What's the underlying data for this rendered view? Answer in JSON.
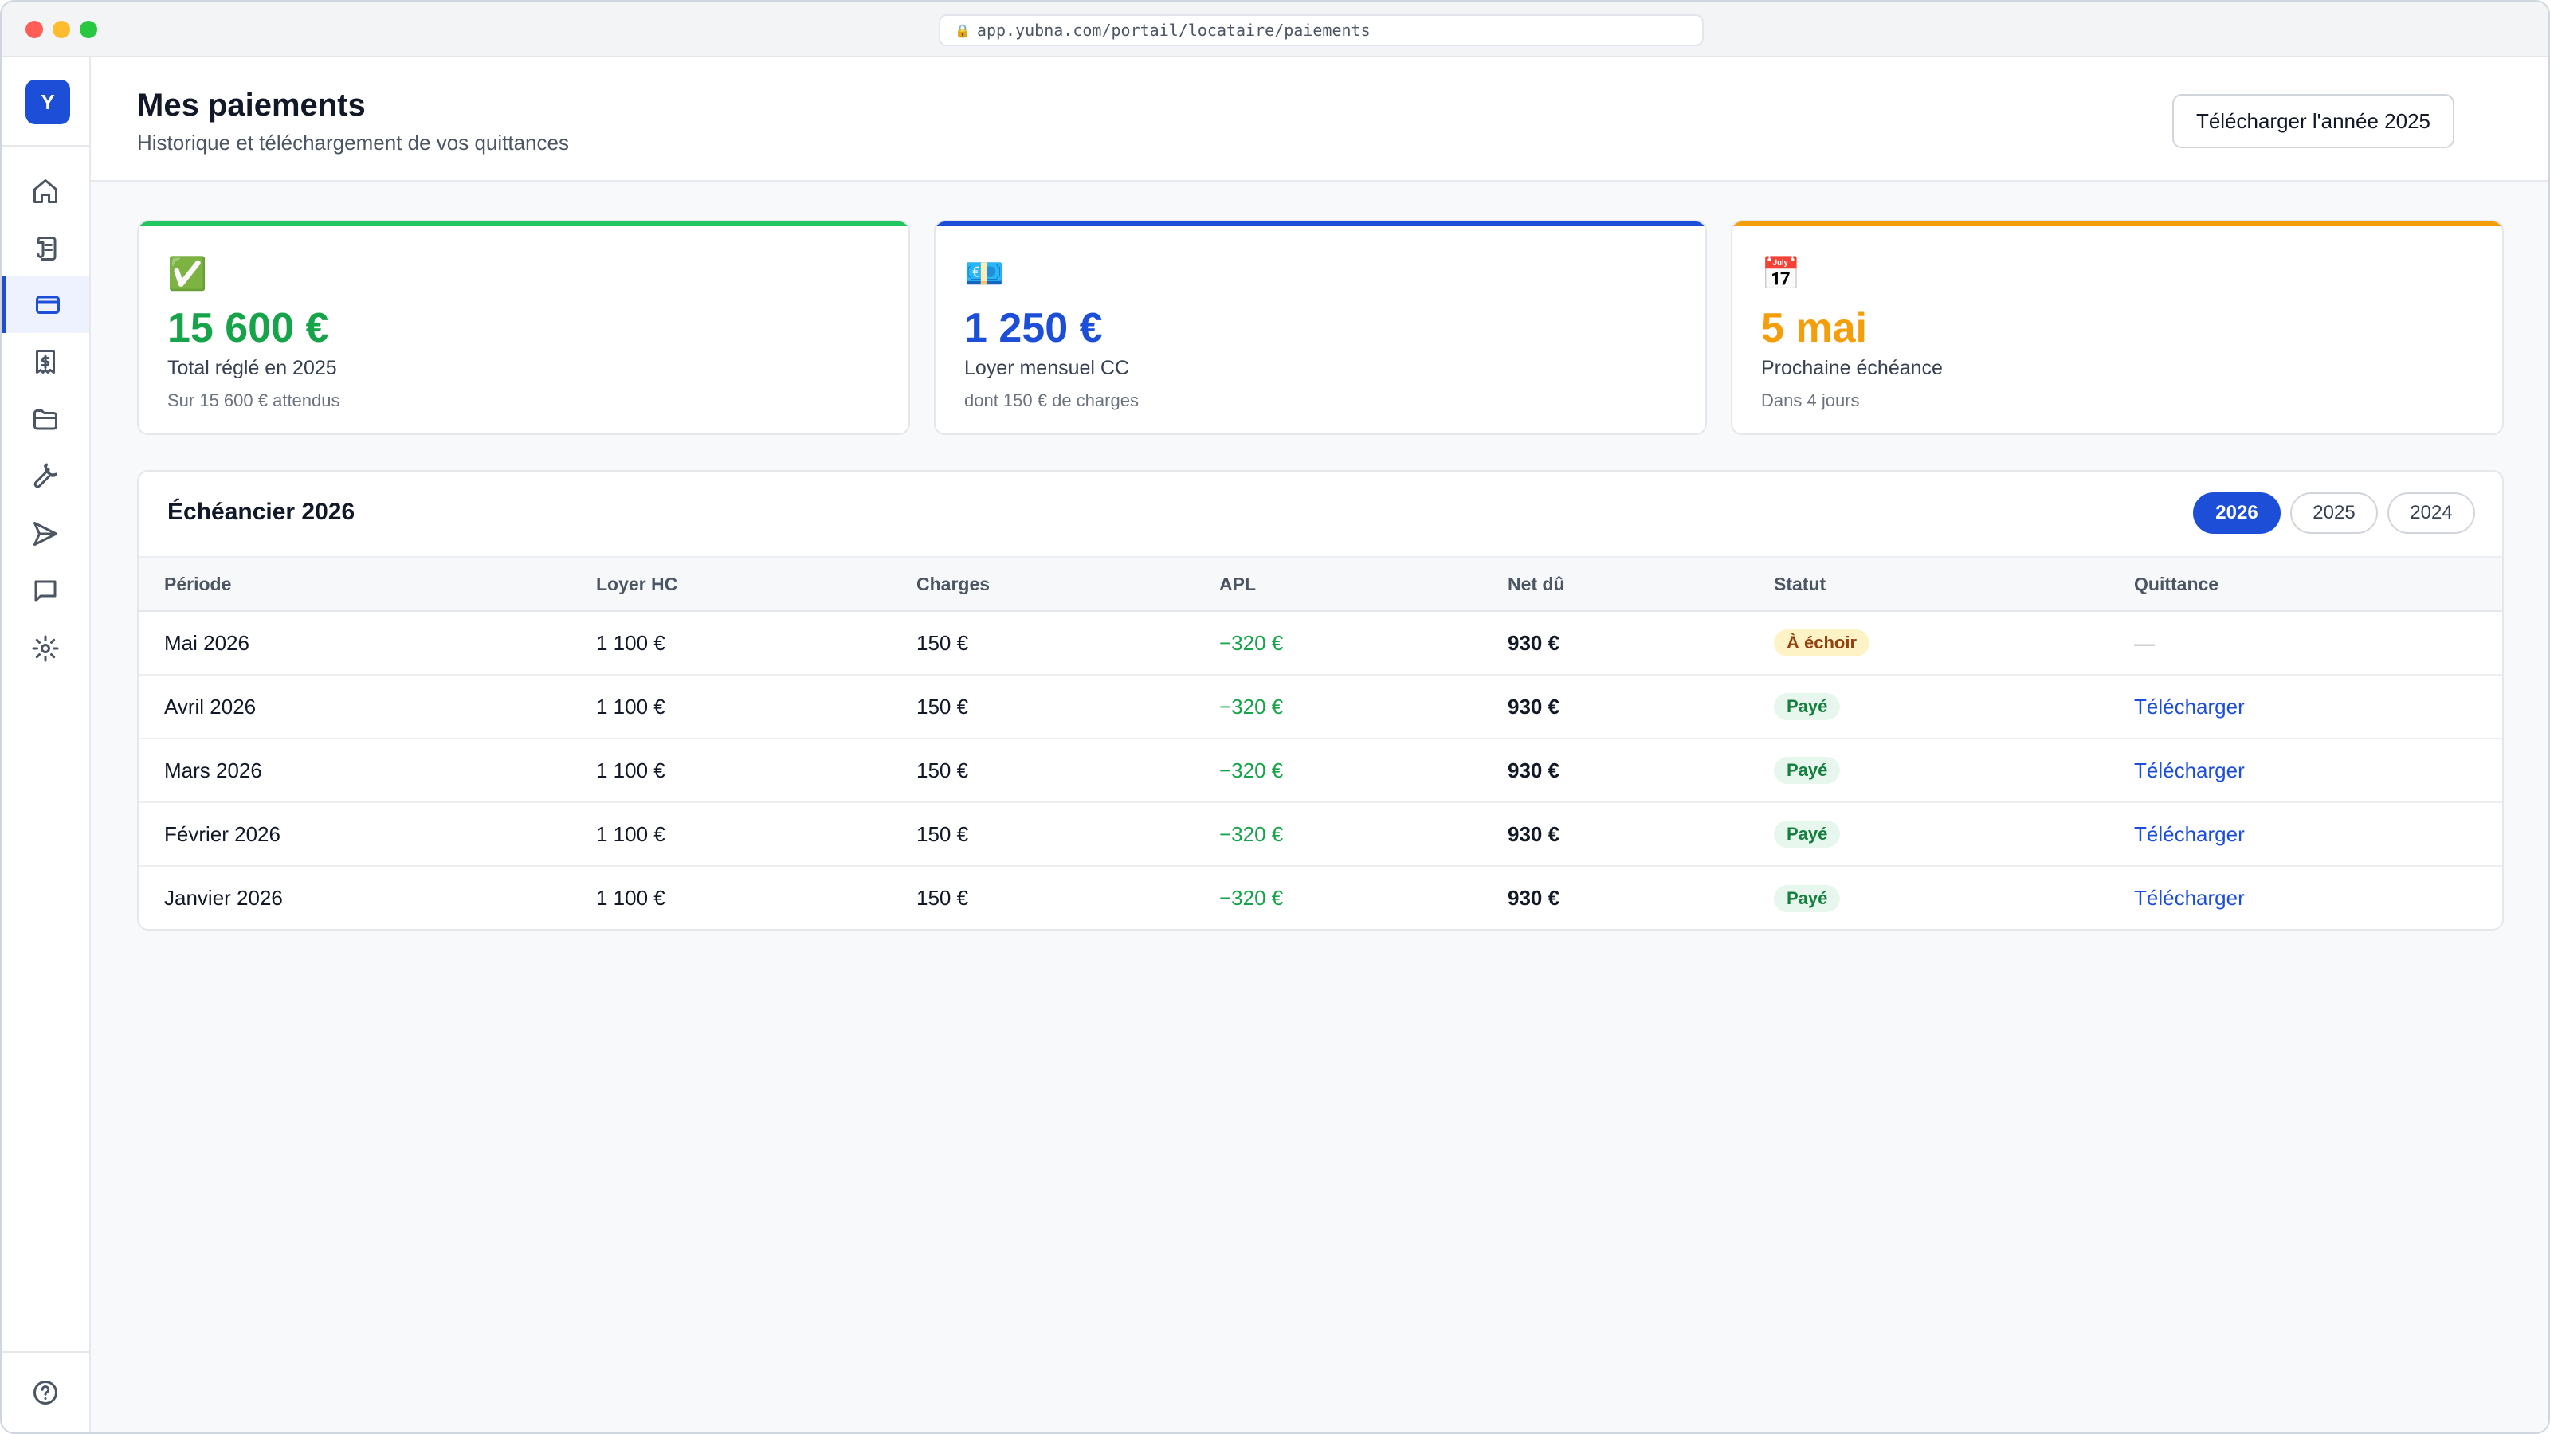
{
  "browser": {
    "url": "app.yubna.com/portail/locataire/paiements"
  },
  "sidebar": {
    "logo": "Y",
    "items": [
      {
        "name": "home-icon",
        "active": false
      },
      {
        "name": "scroll-icon",
        "active": false
      },
      {
        "name": "credit-card-icon",
        "active": true
      },
      {
        "name": "receipt-icon",
        "active": false
      },
      {
        "name": "folder-icon",
        "active": false
      },
      {
        "name": "wrench-icon",
        "active": false
      },
      {
        "name": "send-icon",
        "active": false
      },
      {
        "name": "chat-icon",
        "active": false
      },
      {
        "name": "gear-icon",
        "active": false
      }
    ],
    "help_icon": "help-icon"
  },
  "header": {
    "title": "Mes paiements",
    "subtitle": "Historique et téléchargement de vos quittances",
    "download_year_label": "Télécharger l'année 2025"
  },
  "kpis": [
    {
      "icon": "✅",
      "value": "15 600 €",
      "label": "Total réglé en 2025",
      "sub": "Sur 15 600 € attendus",
      "color": "#16a34a"
    },
    {
      "icon": "💶",
      "value": "1 250 €",
      "label": "Loyer mensuel CC",
      "sub": "dont 150 € de charges",
      "color": "#1d4ed8"
    },
    {
      "icon": "📅",
      "value": "5 mai",
      "label": "Prochaine échéance",
      "sub": "Dans 4 jours",
      "color": "#f59e0b"
    }
  ],
  "schedule": {
    "title": "Échéancier 2026",
    "years": [
      "2026",
      "2025",
      "2024"
    ],
    "active_year": "2026",
    "columns": [
      "Période",
      "Loyer HC",
      "Charges",
      "APL",
      "Net dû",
      "Statut",
      "Quittance"
    ],
    "rows": [
      {
        "period": "Mai 2026",
        "rent": "1 100 €",
        "charges": "150 €",
        "apl": "−320 €",
        "net": "930 €",
        "status": "À échoir",
        "receipt": "—"
      },
      {
        "period": "Avril 2026",
        "rent": "1 100 €",
        "charges": "150 €",
        "apl": "−320 €",
        "net": "930 €",
        "status": "Payé",
        "receipt": "Télécharger"
      },
      {
        "period": "Mars 2026",
        "rent": "1 100 €",
        "charges": "150 €",
        "apl": "−320 €",
        "net": "930 €",
        "status": "Payé",
        "receipt": "Télécharger"
      },
      {
        "period": "Février 2026",
        "rent": "1 100 €",
        "charges": "150 €",
        "apl": "−320 €",
        "net": "930 €",
        "status": "Payé",
        "receipt": "Télécharger"
      },
      {
        "period": "Janvier 2026",
        "rent": "1 100 €",
        "charges": "150 €",
        "apl": "−320 €",
        "net": "930 €",
        "status": "Payé",
        "receipt": "Télécharger"
      }
    ]
  },
  "colors": {
    "accent": "#1d4ed8",
    "success": "#16a34a",
    "warning": "#f59e0b"
  }
}
